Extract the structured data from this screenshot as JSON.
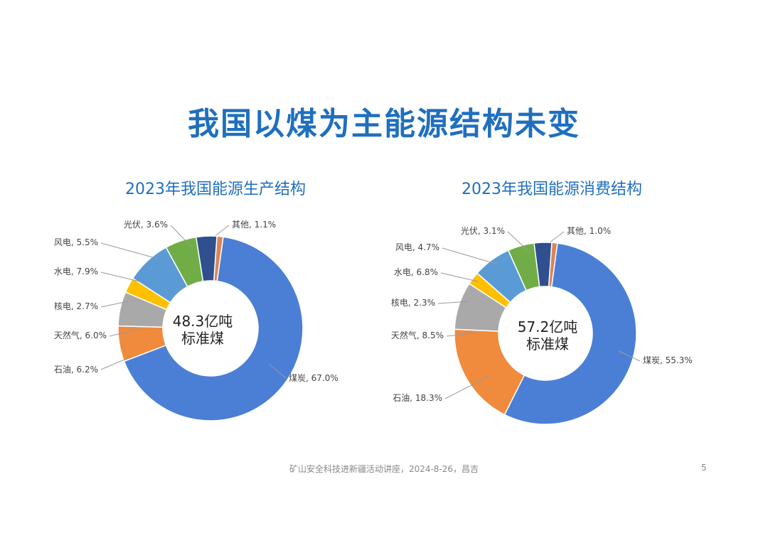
{
  "slide": {
    "title": "我国以煤为主能源结构未变",
    "footer": "矿山安全科技进新疆活动讲座，2024-8-26，昌吉",
    "page_number": "5"
  },
  "colors": {
    "coal": "#4b7fd6",
    "oil": "#f08a3c",
    "gas": "#a9a9a9",
    "nuclear": "#ffc000",
    "hydro": "#5b9bd5",
    "wind": "#70ad47",
    "solar": "#2f4f8f",
    "other": "#d9855a"
  },
  "chart_data": [
    {
      "type": "pie",
      "title": "2023年我国能源生产结构",
      "center_line1": "48.3亿吨",
      "center_line2": "标准煤",
      "slices": [
        {
          "name": "其他",
          "value": 1.1,
          "label": "其他, 1.1%",
          "color_key": "other"
        },
        {
          "name": "煤炭",
          "value": 67.0,
          "label": "煤炭, 67.0%",
          "color_key": "coal"
        },
        {
          "name": "石油",
          "value": 6.2,
          "label": "石油, 6.2%",
          "color_key": "oil"
        },
        {
          "name": "天然气",
          "value": 6.0,
          "label": "天然气, 6.0%",
          "color_key": "gas"
        },
        {
          "name": "核电",
          "value": 2.7,
          "label": "核电, 2.7%",
          "color_key": "nuclear"
        },
        {
          "name": "水电",
          "value": 7.9,
          "label": "水电, 7.9%",
          "color_key": "hydro"
        },
        {
          "name": "风电",
          "value": 5.5,
          "label": "风电, 5.5%",
          "color_key": "wind"
        },
        {
          "name": "光伏",
          "value": 3.6,
          "label": "光伏, 3.6%",
          "color_key": "solar"
        }
      ]
    },
    {
      "type": "pie",
      "title": "2023年我国能源消费结构",
      "center_line1": "57.2亿吨",
      "center_line2": "标准煤",
      "slices": [
        {
          "name": "其他",
          "value": 1.0,
          "label": "其他, 1.0%",
          "color_key": "other"
        },
        {
          "name": "煤炭",
          "value": 55.3,
          "label": "煤炭, 55.3%",
          "color_key": "coal"
        },
        {
          "name": "石油",
          "value": 18.3,
          "label": "石油, 18.3%",
          "color_key": "oil"
        },
        {
          "name": "天然气",
          "value": 8.5,
          "label": "天然气, 8.5%",
          "color_key": "gas"
        },
        {
          "name": "核电",
          "value": 2.3,
          "label": "核电, 2.3%",
          "color_key": "nuclear"
        },
        {
          "name": "水电",
          "value": 6.8,
          "label": "水电, 6.8%",
          "color_key": "hydro"
        },
        {
          "name": "风电",
          "value": 4.7,
          "label": "风电, 4.7%",
          "color_key": "wind"
        },
        {
          "name": "光伏",
          "value": 3.1,
          "label": "光伏, 3.1%",
          "color_key": "solar"
        }
      ]
    }
  ]
}
